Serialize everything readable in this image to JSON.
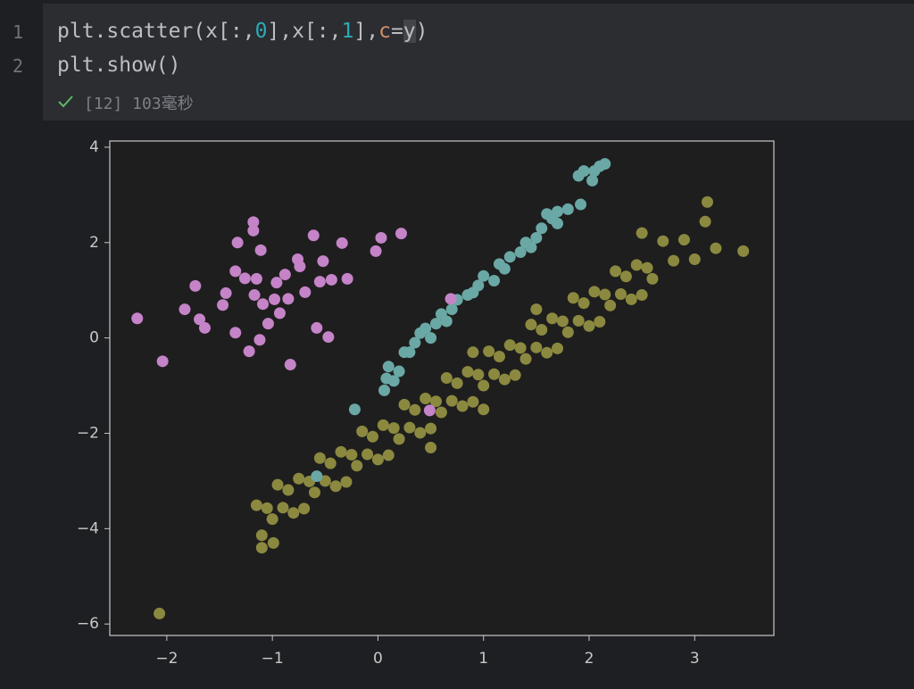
{
  "cell": {
    "line_numbers": [
      "1",
      "2"
    ],
    "lines": [
      [
        "plt.scatter(x[:,",
        "0",
        "],x[:,",
        "1",
        "],",
        "c",
        "=",
        "y",
        ")"
      ],
      [
        "plt.show()"
      ]
    ],
    "status": "[12] 103毫秒"
  },
  "chart_data": {
    "type": "scatter",
    "xlim": [
      -2.54,
      3.75
    ],
    "ylim": [
      -6.24,
      4.13
    ],
    "xticks": [
      {
        "value": -2,
        "label": "−2"
      },
      {
        "value": -1,
        "label": "−1"
      },
      0,
      1,
      2,
      3
    ],
    "yticks": [
      {
        "value": -6,
        "label": "−6"
      },
      {
        "value": -4,
        "label": "−4"
      },
      {
        "value": -2,
        "label": "−2"
      },
      0,
      2,
      4
    ],
    "series": [
      {
        "color": "#8b893f",
        "x": [
          -1.15,
          -1.1,
          -1.05,
          -1.0,
          -0.95,
          -0.9,
          -0.85,
          -0.8,
          -0.75,
          -0.7,
          -0.65,
          -0.6,
          -0.55,
          -0.5,
          -0.45,
          -0.4,
          -0.35,
          -0.3,
          -0.25,
          -0.2,
          -0.15,
          -0.1,
          -0.05,
          0,
          0.05,
          0.1,
          0.15,
          0.2,
          0.25,
          0.3,
          0.35,
          0.4,
          0.45,
          0.5,
          0.55,
          0.6,
          0.65,
          0.7,
          0.75,
          0.8,
          0.85,
          0.9,
          0.95,
          1.0,
          1.05,
          1.1,
          1.15,
          1.2,
          1.25,
          1.3,
          1.35,
          1.4,
          1.45,
          1.5,
          1.55,
          1.6,
          1.65,
          1.7,
          1.75,
          1.8,
          1.85,
          1.9,
          1.95,
          2.0,
          2.05,
          2.1,
          2.15,
          2.2,
          2.25,
          2.3,
          2.35,
          2.4,
          2.45,
          2.5,
          2.55,
          2.6,
          2.7,
          2.8,
          2.9,
          3.0,
          3.1,
          3.2,
          -2.07,
          3.46,
          3.12,
          2.5,
          -1.1,
          -0.99,
          0.9,
          1.5,
          1.0,
          0.5
        ],
        "y": [
          -3.51,
          -4.14,
          -3.57,
          -3.8,
          -3.08,
          -3.56,
          -3.19,
          -3.67,
          -2.95,
          -3.58,
          -3.01,
          -3.24,
          -2.52,
          -3.0,
          -2.63,
          -3.11,
          -2.39,
          -3.02,
          -2.45,
          -2.68,
          -1.96,
          -2.44,
          -2.07,
          -2.55,
          -1.83,
          -2.46,
          -1.89,
          -2.12,
          -1.4,
          -1.88,
          -1.51,
          -1.99,
          -1.27,
          -1.9,
          -1.33,
          -1.56,
          -0.84,
          -1.32,
          -0.95,
          -1.43,
          -0.71,
          -1.34,
          -0.77,
          -1.0,
          -0.28,
          -0.76,
          -0.39,
          -0.87,
          -0.15,
          -0.78,
          -0.21,
          -0.44,
          0.28,
          -0.2,
          0.17,
          -0.31,
          0.41,
          -0.22,
          0.35,
          0.12,
          0.84,
          0.36,
          0.73,
          0.25,
          0.97,
          0.34,
          0.91,
          0.68,
          1.4,
          0.92,
          1.29,
          0.81,
          1.53,
          0.9,
          1.47,
          1.24,
          2.03,
          1.62,
          2.06,
          1.65,
          2.44,
          1.88,
          -5.78,
          1.82,
          2.85,
          2.2,
          -4.4,
          -4.3,
          -0.3,
          0.6,
          -1.5,
          -2.3
        ]
      },
      {
        "color": "#6aa8a5",
        "x": [
          0.06,
          0.08,
          0.1,
          0.2,
          0.25,
          0.35,
          0.4,
          0.5,
          0.55,
          0.6,
          0.7,
          0.75,
          0.85,
          0.95,
          1.0,
          1.1,
          1.15,
          1.25,
          1.35,
          1.4,
          1.5,
          1.55,
          1.65,
          1.7,
          1.8,
          1.7,
          1.9,
          1.95,
          2.05,
          2.1,
          2.15,
          2.03,
          1.92,
          -0.22,
          -0.58,
          0.3,
          0.45,
          0.65,
          0.9,
          1.2,
          1.45,
          1.6,
          0.15
        ],
        "y": [
          -1.1,
          -0.85,
          -0.6,
          -0.7,
          -0.3,
          -0.1,
          0.1,
          0.0,
          0.3,
          0.5,
          0.6,
          0.8,
          0.9,
          1.1,
          1.3,
          1.2,
          1.55,
          1.7,
          1.8,
          2.0,
          2.1,
          2.3,
          2.5,
          2.65,
          2.7,
          2.4,
          3.4,
          3.5,
          3.5,
          3.6,
          3.65,
          3.3,
          2.8,
          -1.5,
          -2.9,
          -0.3,
          0.2,
          0.35,
          0.95,
          1.45,
          1.9,
          2.6,
          -0.9
        ]
      },
      {
        "color": "#c583c8",
        "x": [
          -2.28,
          -2.04,
          -1.83,
          -1.73,
          -1.69,
          -1.64,
          -1.47,
          -1.44,
          -1.35,
          -1.33,
          -1.35,
          -1.26,
          -1.22,
          -1.18,
          -1.18,
          -1.15,
          -1.17,
          -1.11,
          -1.12,
          -1.09,
          -1.04,
          -0.98,
          -0.96,
          -0.93,
          -0.88,
          -0.85,
          -0.83,
          -0.76,
          -0.74,
          -0.69,
          -0.61,
          -0.58,
          -0.55,
          -0.52,
          -0.47,
          -0.44,
          -0.34,
          -0.29,
          -0.02,
          0.03,
          0.22,
          0.49,
          0.69
        ],
        "y": [
          0.41,
          -0.49,
          0.6,
          1.09,
          0.39,
          0.21,
          0.69,
          0.94,
          0.11,
          2.0,
          1.4,
          1.25,
          -0.28,
          2.43,
          2.25,
          1.24,
          0.9,
          1.84,
          -0.04,
          0.71,
          0.3,
          0.81,
          1.16,
          0.52,
          1.33,
          0.82,
          -0.56,
          1.65,
          1.5,
          0.96,
          2.15,
          0.21,
          1.18,
          1.61,
          0.02,
          1.22,
          1.99,
          1.24,
          1.82,
          2.1,
          2.19,
          -1.52,
          0.82
        ]
      }
    ]
  }
}
